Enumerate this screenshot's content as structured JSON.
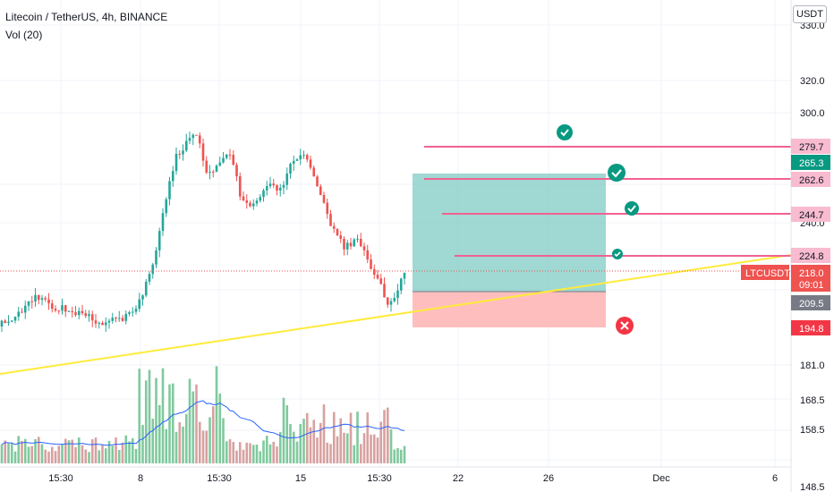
{
  "header": {
    "symbol_title": "Litecoin / TetherUS, 4h, BINANCE",
    "volume_indicator": "Vol (20)"
  },
  "price_axis": {
    "unit": "USDT",
    "ticks": [
      "320.0",
      "300.0",
      "240.0",
      "181.0",
      "168.5",
      "158.5",
      "148.5"
    ],
    "top_partial": "330.0"
  },
  "time_axis": {
    "labels": [
      "15:30",
      "8",
      "15:30",
      "15",
      "15:30",
      "22",
      "26",
      "Dec",
      "6"
    ]
  },
  "price_tags": {
    "target_1": "279.7",
    "target_profit": "265.3",
    "target_2": "262.6",
    "target_3": "244.7",
    "target_4": "224.8",
    "symbol_tag": "LTCUSDT",
    "last_price": "218.0",
    "countdown": "09:01",
    "entry": "209.5",
    "stop": "194.8"
  },
  "colors": {
    "up": "#26a69a",
    "down": "#ef5350",
    "target_line": "#f06292",
    "trendline": "#ffeb3b",
    "profit_zone": "#80cbc4",
    "loss_zone": "#ffb3b3",
    "volume_ma": "#2962ff",
    "check": "#089981",
    "cross": "#f23645"
  },
  "chart_data": {
    "type": "candlestick",
    "seed": 1,
    "targets": [
      279.7,
      262.6,
      244.7,
      224.8
    ],
    "entry": 209.5,
    "stop": 194.8,
    "profit_target": 265.3,
    "last_price": 218.0
  }
}
